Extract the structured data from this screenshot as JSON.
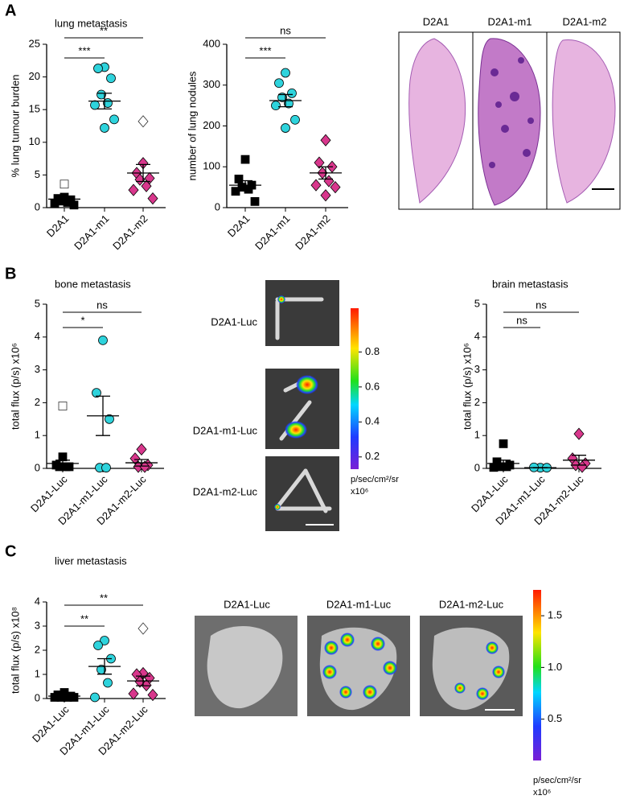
{
  "panel_labels": [
    "A",
    "B",
    "C"
  ],
  "chart_data": [
    {
      "type": "dot",
      "title": "lung metastasis",
      "y_label": "% lung tumour burden",
      "categories": [
        "D2A1",
        "D2A1-m1",
        "D2A1-m2"
      ],
      "markers": [
        "square",
        "circle",
        "diamond"
      ],
      "colors": [
        "#000000",
        "#2ed3dc",
        "#d8378c"
      ],
      "points": [
        [
          1.6,
          1.4,
          1.2,
          1.0,
          0.8,
          0.6,
          0.4
        ],
        [
          21.5,
          21.3,
          19.8,
          17.3,
          16.0,
          15.7,
          13.5,
          12.2
        ],
        [
          6.8,
          5.3,
          4.5,
          4.3,
          3.3,
          2.7,
          1.4
        ]
      ],
      "outliers": [
        [
          3.6
        ],
        [],
        [
          13.2
        ]
      ],
      "mean": [
        1.3,
        16.3,
        5.3
      ],
      "sem": [
        0.4,
        1.2,
        1.3
      ],
      "ylim": [
        0,
        25
      ],
      "yticks": [
        0,
        5,
        10,
        15,
        20,
        25
      ],
      "significance": [
        {
          "label": "***",
          "groups": [
            "D2A1",
            "D2A1-m1"
          ]
        },
        {
          "label": "**",
          "groups": [
            "D2A1",
            "D2A1-m2"
          ]
        }
      ]
    },
    {
      "type": "dot",
      "y_label": "number of lung nodules",
      "categories": [
        "D2A1",
        "D2A1-m1",
        "D2A1-m2"
      ],
      "markers": [
        "square",
        "circle",
        "diamond"
      ],
      "colors": [
        "#000000",
        "#2ed3dc",
        "#d8378c"
      ],
      "points": [
        [
          118,
          70,
          55,
          50,
          45,
          40,
          15
        ],
        [
          330,
          305,
          280,
          270,
          255,
          250,
          215,
          195
        ],
        [
          165,
          110,
          100,
          85,
          65,
          55,
          50,
          30
        ]
      ],
      "outliers": [
        [],
        [],
        []
      ],
      "mean": [
        55,
        262,
        85
      ],
      "sem": [
        11,
        15,
        15
      ],
      "ylim": [
        0,
        400
      ],
      "yticks": [
        0,
        100,
        200,
        300,
        400
      ],
      "significance": [
        {
          "label": "***",
          "groups": [
            "D2A1",
            "D2A1-m1"
          ]
        },
        {
          "label": "ns",
          "groups": [
            "D2A1",
            "D2A1-m2"
          ]
        }
      ]
    },
    {
      "type": "dot",
      "title": "bone metastasis",
      "y_label": "total flux (p/s) x10⁶",
      "categories": [
        "D2A1-Luc",
        "D2A1-m1-Luc",
        "D2A1-m2-Luc"
      ],
      "markers": [
        "square",
        "circle",
        "diamond"
      ],
      "colors": [
        "#000000",
        "#2ed3dc",
        "#d8378c"
      ],
      "points": [
        [
          0.35,
          0.1,
          0.05,
          0.05,
          0.05
        ],
        [
          3.9,
          2.3,
          1.5,
          0.02,
          0.02
        ],
        [
          0.58,
          0.3,
          0.1,
          0.05,
          0.05
        ]
      ],
      "outliers": [
        [
          1.9
        ],
        [],
        []
      ],
      "mean": [
        0.15,
        1.6,
        0.17
      ],
      "sem": [
        0.1,
        0.6,
        0.1
      ],
      "ylim": [
        0,
        5
      ],
      "yticks": [
        0,
        1,
        2,
        3,
        4,
        5
      ],
      "significance": [
        {
          "label": "*",
          "groups": [
            "D2A1-Luc",
            "D2A1-m1-Luc"
          ]
        },
        {
          "label": "ns",
          "groups": [
            "D2A1-Luc",
            "D2A1-m2-Luc"
          ]
        }
      ]
    },
    {
      "type": "dot",
      "title": "brain metastasis",
      "y_label": "total flux (p/s) x10⁶",
      "categories": [
        "D2A1-Luc",
        "D2A1-m1-Luc",
        "D2A1-m2-Luc"
      ],
      "markers": [
        "square",
        "circle",
        "diamond"
      ],
      "colors": [
        "#000000",
        "#2ed3dc",
        "#d8378c"
      ],
      "points": [
        [
          0.75,
          0.2,
          0.1,
          0.05,
          0.05,
          0.03
        ],
        [
          0.02,
          0.03,
          0.02
        ],
        [
          1.05,
          0.3,
          0.15,
          0.1,
          0.05
        ]
      ],
      "outliers": [
        [],
        [],
        []
      ],
      "mean": [
        0.15,
        0.02,
        0.25
      ],
      "sem": [
        0.1,
        0.005,
        0.15
      ],
      "ylim": [
        0,
        5
      ],
      "yticks": [
        0,
        1,
        2,
        3,
        4,
        5
      ],
      "significance": [
        {
          "label": "ns",
          "groups": [
            "D2A1-Luc",
            "D2A1-m1-Luc"
          ]
        },
        {
          "label": "ns",
          "groups": [
            "D2A1-Luc",
            "D2A1-m2-Luc"
          ]
        }
      ]
    },
    {
      "type": "dot",
      "title": "liver metastasis",
      "y_label": "total flux (p/s) x10⁸",
      "categories": [
        "D2A1-Luc",
        "D2A1-m1-Luc",
        "D2A1-m2-Luc"
      ],
      "markers": [
        "square",
        "circle",
        "diamond"
      ],
      "colors": [
        "#000000",
        "#2ed3dc",
        "#d8378c"
      ],
      "points": [
        [
          0.25,
          0.15,
          0.1,
          0.05,
          0.05,
          0.05,
          0.05
        ],
        [
          2.4,
          2.2,
          1.65,
          1.2,
          0.65,
          0.05
        ],
        [
          1.05,
          1.0,
          0.85,
          0.7,
          0.55,
          0.2,
          0.15
        ]
      ],
      "outliers": [
        [],
        [],
        [
          2.9
        ]
      ],
      "mean": [
        0.1,
        1.33,
        0.73
      ],
      "sem": [
        0.03,
        0.32,
        0.2
      ],
      "ylim": [
        0,
        4
      ],
      "yticks": [
        0,
        1,
        2,
        3,
        4
      ],
      "significance": [
        {
          "label": "**",
          "groups": [
            "D2A1-Luc",
            "D2A1-m1-Luc"
          ]
        },
        {
          "label": "**",
          "groups": [
            "D2A1-Luc",
            "D2A1-m2-Luc"
          ]
        }
      ]
    }
  ],
  "lung_images": {
    "labels": [
      "D2A1",
      "D2A1-m1",
      "D2A1-m2"
    ]
  },
  "bone_images": {
    "labels": [
      "D2A1-Luc",
      "D2A1-m1-Luc",
      "D2A1-m2-Luc"
    ]
  },
  "liver_images": {
    "labels": [
      "D2A1-Luc",
      "D2A1-m1-Luc",
      "D2A1-m2-Luc"
    ]
  },
  "colorbars": [
    {
      "lim": [
        0.13,
        1.05
      ],
      "ticks": [
        0.2,
        0.4,
        0.6,
        0.8
      ],
      "unit": "p/sec/cm²/sr",
      "scale": "x10⁶"
    },
    {
      "lim": [
        0.1,
        1.75
      ],
      "ticks": [
        0.5,
        {
          "value": 1.0,
          "label": "1.0"
        },
        1.5
      ],
      "unit": "p/sec/cm²/sr",
      "scale": "x10⁶"
    }
  ]
}
